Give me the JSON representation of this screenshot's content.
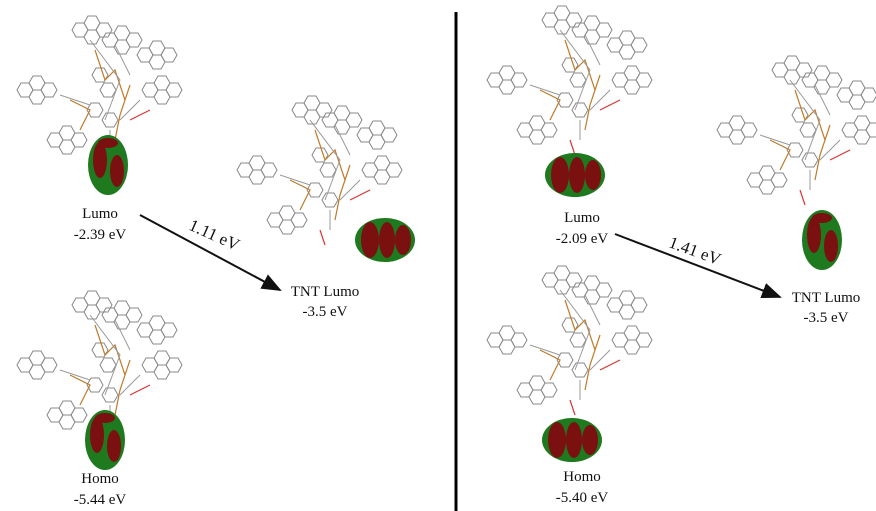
{
  "panels": [
    {
      "lumo": {
        "label": "Lumo",
        "energy": "-2.39 eV"
      },
      "gap": "1.11 eV",
      "tnt_lumo": {
        "label": "TNT Lumo",
        "energy": "-3.5 eV"
      },
      "homo": {
        "label": "Homo",
        "energy": "-5.44 eV"
      }
    },
    {
      "lumo": {
        "label": "Lumo",
        "energy": "-2.09 eV"
      },
      "gap": "1.41 eV",
      "tnt_lumo": {
        "label": "TNT Lumo",
        "energy": "-3.5 eV"
      },
      "homo": {
        "label": "Homo",
        "energy": "-5.40 eV"
      }
    }
  ]
}
